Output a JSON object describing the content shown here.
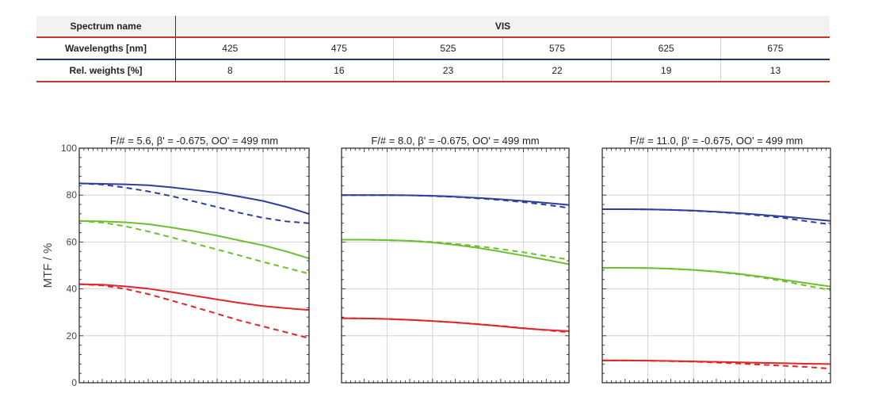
{
  "table": {
    "row1": {
      "label": "Spectrum name",
      "value": "VIS"
    },
    "row2": {
      "label": "Wavelengths [nm]",
      "values": [
        "425",
        "475",
        "525",
        "575",
        "625",
        "675"
      ]
    },
    "row3": {
      "label": "Rel. weights [%]",
      "values": [
        "8",
        "16",
        "23",
        "22",
        "19",
        "13"
      ]
    }
  },
  "colors": {
    "blue": "#2e3f9e",
    "green": "#6cbf2f",
    "red": "#e0262a"
  },
  "chart_data": [
    {
      "type": "line",
      "title": "F/# = 5.6, β' = -0.675, OO' = 499 mm",
      "ylabel": "MTF / %",
      "ylim": [
        0,
        100
      ],
      "yticks": [
        "0",
        "20",
        "40",
        "60",
        "80",
        "100"
      ],
      "xlim": [
        0,
        1
      ],
      "x": [
        0,
        0.1,
        0.2,
        0.3,
        0.4,
        0.5,
        0.6,
        0.7,
        0.8,
        0.9,
        1.0
      ],
      "grid": true,
      "series": [
        {
          "color": "blue",
          "style": "solid",
          "values": [
            85,
            84.8,
            84.6,
            84.2,
            83.3,
            82.2,
            81,
            79.3,
            77.5,
            75,
            72
          ]
        },
        {
          "color": "blue",
          "style": "dashed",
          "values": [
            85,
            84.5,
            83.2,
            81.6,
            79.6,
            77.3,
            74.9,
            72.4,
            70.3,
            68.8,
            68
          ]
        },
        {
          "color": "green",
          "style": "solid",
          "values": [
            69,
            68.8,
            68.4,
            67.6,
            66.2,
            64.6,
            62.7,
            60.6,
            58.6,
            56,
            53
          ]
        },
        {
          "color": "green",
          "style": "dashed",
          "values": [
            69,
            68.3,
            66.7,
            64.5,
            62,
            59.4,
            56.8,
            54.2,
            51.5,
            49,
            46.5
          ]
        },
        {
          "color": "red",
          "style": "solid",
          "values": [
            42,
            41.8,
            41.1,
            40.1,
            38.7,
            37.1,
            35.5,
            34,
            32.7,
            31.8,
            31
          ]
        },
        {
          "color": "red",
          "style": "dashed",
          "values": [
            42,
            41.5,
            40,
            37.8,
            35.1,
            32.3,
            29.4,
            26.5,
            24,
            21.5,
            19
          ]
        }
      ]
    },
    {
      "type": "line",
      "title": "F/# = 8.0, β' = -0.675, OO' = 499 mm",
      "ylim": [
        0,
        100
      ],
      "xlim": [
        0,
        1
      ],
      "x": [
        0,
        0.1,
        0.2,
        0.3,
        0.4,
        0.5,
        0.6,
        0.7,
        0.8,
        0.9,
        1.0
      ],
      "grid": true,
      "series": [
        {
          "color": "blue",
          "style": "solid",
          "values": [
            80,
            80,
            80,
            79.9,
            79.7,
            79.3,
            78.8,
            78.2,
            77.5,
            76.7,
            75.8
          ]
        },
        {
          "color": "blue",
          "style": "dashed",
          "values": [
            80,
            80,
            80,
            79.9,
            79.6,
            79.2,
            78.6,
            77.9,
            77,
            75.9,
            74.5
          ]
        },
        {
          "color": "green",
          "style": "solid",
          "values": [
            61,
            61,
            60.8,
            60.5,
            59.8,
            58.8,
            57.5,
            55.9,
            54.2,
            52.4,
            50.5
          ]
        },
        {
          "color": "green",
          "style": "dashed",
          "values": [
            61,
            61,
            60.8,
            60.5,
            60,
            59.2,
            58.2,
            57,
            55.6,
            54,
            52.5
          ]
        },
        {
          "color": "red",
          "style": "solid",
          "values": [
            27.5,
            27.4,
            27.2,
            26.8,
            26.3,
            25.7,
            24.9,
            24.1,
            23.2,
            22.5,
            22
          ]
        },
        {
          "color": "red",
          "style": "dashed",
          "values": [
            27.5,
            27.4,
            27.2,
            26.8,
            26.3,
            25.7,
            25,
            24.2,
            23.3,
            22.4,
            21.5
          ]
        }
      ]
    },
    {
      "type": "line",
      "title": "F/# = 11.0, β' = -0.675, OO' = 499 mm",
      "ylim": [
        0,
        100
      ],
      "xlim": [
        0,
        1
      ],
      "x": [
        0,
        0.1,
        0.2,
        0.3,
        0.4,
        0.5,
        0.6,
        0.7,
        0.8,
        0.9,
        1.0
      ],
      "grid": true,
      "series": [
        {
          "color": "blue",
          "style": "solid",
          "values": [
            74,
            74,
            73.9,
            73.7,
            73.4,
            72.9,
            72.3,
            71.6,
            70.8,
            69.9,
            69
          ]
        },
        {
          "color": "blue",
          "style": "dashed",
          "values": [
            74,
            74,
            73.9,
            73.7,
            73.3,
            72.8,
            72.1,
            71.2,
            70.2,
            68.8,
            67.5
          ]
        },
        {
          "color": "green",
          "style": "solid",
          "values": [
            49,
            49,
            48.9,
            48.6,
            48.1,
            47.4,
            46.4,
            45.2,
            43.8,
            42.4,
            41
          ]
        },
        {
          "color": "green",
          "style": "dashed",
          "values": [
            49,
            49,
            48.9,
            48.6,
            48.1,
            47.3,
            46.2,
            44.8,
            43.2,
            41.3,
            39.5
          ]
        },
        {
          "color": "red",
          "style": "solid",
          "values": [
            9.5,
            9.5,
            9.4,
            9.3,
            9.1,
            8.9,
            8.7,
            8.5,
            8.3,
            8.1,
            8
          ]
        },
        {
          "color": "red",
          "style": "dashed",
          "values": [
            9.5,
            9.5,
            9.4,
            9.2,
            9,
            8.6,
            8.2,
            7.7,
            7.2,
            6.7,
            6
          ]
        }
      ]
    }
  ]
}
